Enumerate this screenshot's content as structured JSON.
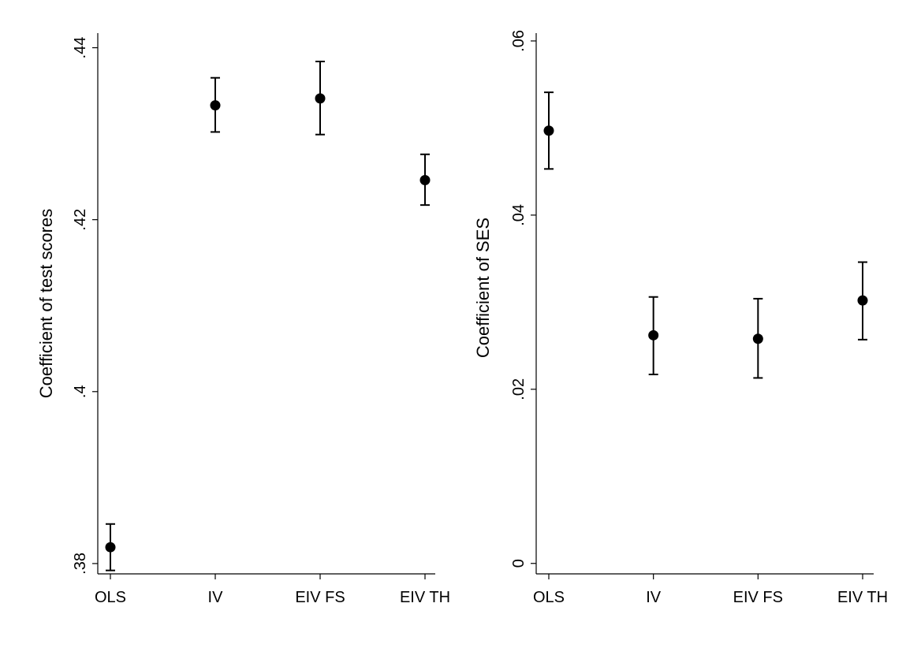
{
  "chart_data": [
    {
      "type": "scatter",
      "title": "",
      "xlabel": "",
      "ylabel": "Coefficient of test scores",
      "categories": [
        "OLS",
        "IV",
        "EIV FS",
        "EIV TH"
      ],
      "yticks": [
        {
          "value": 0.38,
          "label": ".38"
        },
        {
          "value": 0.4,
          "label": ".4"
        },
        {
          "value": 0.42,
          "label": ".42"
        },
        {
          "value": 0.44,
          "label": ".44"
        }
      ],
      "ylim": [
        0.3788,
        0.4417
      ],
      "points": [
        {
          "category": "OLS",
          "value": 0.3819,
          "lower": 0.3792,
          "upper": 0.3846
        },
        {
          "category": "IV",
          "value": 0.4333,
          "lower": 0.4302,
          "upper": 0.4365
        },
        {
          "category": "EIV FS",
          "value": 0.4341,
          "lower": 0.4299,
          "upper": 0.4384
        },
        {
          "category": "EIV TH",
          "value": 0.4246,
          "lower": 0.4217,
          "upper": 0.4276
        }
      ],
      "grid": false,
      "legend": "none"
    },
    {
      "type": "scatter",
      "title": "",
      "xlabel": "",
      "ylabel": "Coefficient of SES",
      "categories": [
        "OLS",
        "IV",
        "EIV FS",
        "EIV TH"
      ],
      "yticks": [
        {
          "value": 0,
          "label": "0"
        },
        {
          "value": 0.02,
          "label": ".02"
        },
        {
          "value": 0.04,
          "label": ".04"
        },
        {
          "value": 0.06,
          "label": ".06"
        }
      ],
      "ylim": [
        -0.0012,
        0.0609
      ],
      "points": [
        {
          "category": "OLS",
          "value": 0.0497,
          "lower": 0.0453,
          "upper": 0.0541
        },
        {
          "category": "IV",
          "value": 0.0262,
          "lower": 0.0217,
          "upper": 0.0306
        },
        {
          "category": "EIV FS",
          "value": 0.0258,
          "lower": 0.0213,
          "upper": 0.0304
        },
        {
          "category": "EIV TH",
          "value": 0.0302,
          "lower": 0.0257,
          "upper": 0.0346
        }
      ],
      "grid": false,
      "legend": "none"
    }
  ]
}
